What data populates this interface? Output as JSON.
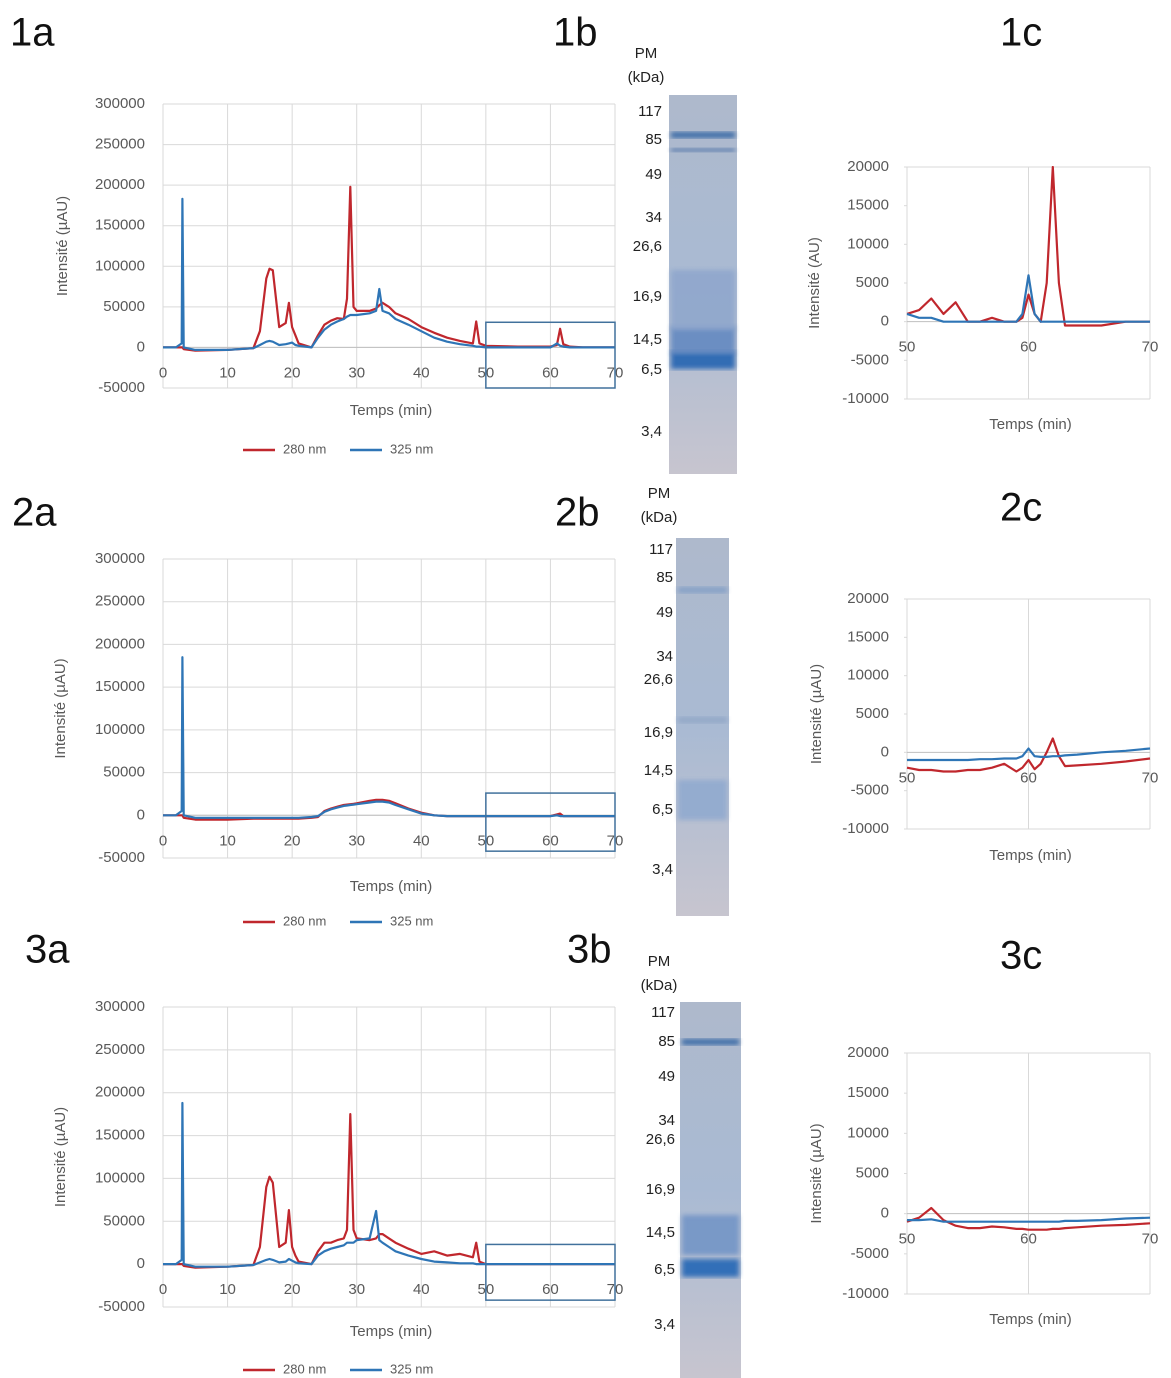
{
  "figure": {
    "panel_labels": [
      "1a",
      "1b",
      "1c",
      "2a",
      "2b",
      "2c",
      "3a",
      "3b",
      "3c"
    ],
    "gels": [
      {
        "header": [
          "PM",
          "(kDa)"
        ],
        "markers": [
          "117",
          "85",
          "49",
          "34",
          "26,6",
          "16,9",
          "14,5",
          "6,5",
          "3,4"
        ]
      },
      {
        "header": [
          "PM",
          "(kDa)"
        ],
        "markers": [
          "117",
          "85",
          "49",
          "34",
          "26,6",
          "16,9",
          "14,5",
          "6,5",
          "3,4"
        ]
      },
      {
        "header": [
          "PM",
          "(kDa)"
        ],
        "markers": [
          "117",
          "85",
          "49",
          "34",
          "26,6",
          "16,9",
          "14,5",
          "6,5",
          "3,4"
        ]
      }
    ]
  },
  "chart_data": [
    {
      "type": "line",
      "x_label": "Temps (min)",
      "y_label": "Intensité (µAU)",
      "grid": "both",
      "xlim": [
        0,
        70
      ],
      "xticks": [
        0,
        10,
        20,
        30,
        40,
        50,
        60,
        70
      ],
      "ylim": [
        -50000,
        300000
      ],
      "yticks": [
        -50000,
        0,
        50000,
        100000,
        150000,
        200000,
        250000,
        300000
      ],
      "highlight": {
        "x": [
          50,
          70
        ],
        "y": [
          -50000,
          31000
        ],
        "color": "#41719c"
      },
      "x": [
        0,
        2,
        2.9,
        3,
        3.2,
        5,
        10,
        14,
        15,
        16,
        16.5,
        17,
        18,
        19,
        19.5,
        20,
        20.5,
        21,
        23,
        24,
        25,
        26,
        27,
        28,
        28.5,
        29,
        29.5,
        30,
        32,
        33,
        33.5,
        34,
        35,
        36,
        38,
        40,
        42,
        44,
        46,
        48,
        48.5,
        49,
        50,
        55,
        60,
        61,
        61.5,
        62,
        63,
        65,
        70
      ],
      "series": [
        {
          "name": "280 nm",
          "color": "#c0272d",
          "values": [
            0,
            0,
            0,
            0,
            -2000,
            -4000,
            -3000,
            -1000,
            20000,
            85000,
            97000,
            95000,
            25000,
            30000,
            55000,
            25000,
            15000,
            5000,
            0,
            15000,
            28000,
            33000,
            36000,
            35000,
            60000,
            198000,
            50000,
            45000,
            45000,
            48000,
            52000,
            55000,
            50000,
            42000,
            35000,
            25000,
            18000,
            12000,
            8000,
            5000,
            32000,
            5000,
            2000,
            1000,
            1000,
            3000,
            23000,
            4000,
            1000,
            0,
            0
          ]
        },
        {
          "name": "325 nm",
          "color": "#2e75b6",
          "values": [
            0,
            0,
            5000,
            183000,
            0,
            -3000,
            -3000,
            -1000,
            3000,
            7000,
            8000,
            7000,
            3000,
            4000,
            5000,
            6000,
            3000,
            2000,
            0,
            12000,
            22000,
            28000,
            32000,
            35000,
            38000,
            40000,
            40000,
            40000,
            42000,
            45000,
            72000,
            45000,
            42000,
            35000,
            28000,
            20000,
            12000,
            7000,
            4000,
            2000,
            1000,
            1000,
            0,
            0,
            0,
            5000,
            2000,
            1000,
            0,
            0,
            0
          ]
        }
      ]
    },
    {
      "type": "line",
      "x_label": "Temps (min)",
      "y_label": "Intensité (AU)",
      "grid": "x",
      "xlim": [
        50,
        70
      ],
      "xticks": [
        50,
        60,
        70
      ],
      "ylim": [
        -10000,
        20000
      ],
      "yticks": [
        -10000,
        -5000,
        0,
        5000,
        10000,
        15000,
        20000
      ],
      "x": [
        50,
        51,
        52,
        53,
        54,
        55,
        56,
        57,
        58,
        59,
        59.5,
        60,
        60.5,
        61,
        61.5,
        62,
        62.5,
        63,
        64,
        66,
        68,
        70
      ],
      "series": [
        {
          "color": "#c0272d",
          "values": [
            1000,
            1500,
            3000,
            1000,
            2500,
            0,
            0,
            500,
            0,
            0,
            500,
            3500,
            1000,
            0,
            5000,
            20000,
            5000,
            -500,
            -500,
            -500,
            0,
            0
          ]
        },
        {
          "color": "#2e75b6",
          "values": [
            1000,
            500,
            500,
            0,
            0,
            0,
            0,
            0,
            0,
            0,
            1000,
            6000,
            1000,
            0,
            0,
            0,
            0,
            0,
            0,
            0,
            0,
            0
          ]
        }
      ]
    },
    {
      "type": "line",
      "x_label": "Temps (min)",
      "y_label": "Intensité (µAU)",
      "grid": "both",
      "xlim": [
        0,
        70
      ],
      "xticks": [
        0,
        10,
        20,
        30,
        40,
        50,
        60,
        70
      ],
      "ylim": [
        -50000,
        300000
      ],
      "yticks": [
        -50000,
        0,
        50000,
        100000,
        150000,
        200000,
        250000,
        300000
      ],
      "highlight": {
        "x": [
          50,
          70
        ],
        "y": [
          -42000,
          26000
        ],
        "color": "#41719c"
      },
      "x": [
        0,
        2,
        2.9,
        3,
        3.2,
        5,
        10,
        14,
        15,
        16,
        16.5,
        17,
        18,
        19,
        19.5,
        20,
        20.5,
        21,
        23,
        24,
        25,
        26,
        27,
        28,
        28.5,
        29,
        29.5,
        30,
        32,
        33,
        33.5,
        34,
        35,
        36,
        38,
        40,
        42,
        44,
        46,
        48,
        48.5,
        49,
        50,
        55,
        60,
        61,
        61.5,
        62,
        63,
        65,
        70
      ],
      "series": [
        {
          "name": "280 nm",
          "color": "#c0272d",
          "values": [
            0,
            0,
            0,
            0,
            -3000,
            -5000,
            -5000,
            -4000,
            -4000,
            -4000,
            -4000,
            -4000,
            -4000,
            -4000,
            -4000,
            -4000,
            -4000,
            -4000,
            -3000,
            -2000,
            5000,
            8000,
            10000,
            12000,
            12500,
            13000,
            13500,
            14000,
            17000,
            18000,
            18000,
            18000,
            17000,
            14000,
            8000,
            3000,
            0,
            -1000,
            -1000,
            -1000,
            -1000,
            -1000,
            -1000,
            -1000,
            -1000,
            1000,
            2000,
            -1000,
            -1000,
            -1000,
            -1000
          ]
        },
        {
          "name": "325 nm",
          "color": "#2e75b6",
          "values": [
            0,
            0,
            5000,
            185000,
            0,
            -3000,
            -3000,
            -3000,
            -3000,
            -3000,
            -3000,
            -3000,
            -3000,
            -3000,
            -3000,
            -3000,
            -3000,
            -3000,
            -2000,
            -1000,
            4000,
            7000,
            9000,
            11000,
            11500,
            12000,
            12500,
            13000,
            15000,
            16000,
            16000,
            16000,
            15000,
            12000,
            7000,
            2000,
            0,
            -1000,
            -1000,
            -1000,
            -1000,
            -1000,
            -1000,
            -1000,
            -1000,
            0,
            -1000,
            -1000,
            -1000,
            -1000,
            -1000
          ]
        }
      ]
    },
    {
      "type": "line",
      "x_label": "Temps (min)",
      "y_label": "Intensité (µAU)",
      "grid": "x",
      "xlim": [
        50,
        70
      ],
      "xticks": [
        50,
        60,
        70
      ],
      "ylim": [
        -10000,
        20000
      ],
      "yticks": [
        -10000,
        -5000,
        0,
        5000,
        10000,
        15000,
        20000
      ],
      "x": [
        50,
        51,
        52,
        53,
        54,
        55,
        56,
        57,
        58,
        59,
        59.5,
        60,
        60.5,
        61,
        61.5,
        62,
        62.5,
        63,
        64,
        66,
        68,
        70
      ],
      "series": [
        {
          "color": "#c0272d",
          "values": [
            -2000,
            -2300,
            -2300,
            -2500,
            -2500,
            -2300,
            -2300,
            -2000,
            -1500,
            -2500,
            -2000,
            -1000,
            -2200,
            -1500,
            0,
            1800,
            -500,
            -1800,
            -1700,
            -1500,
            -1200,
            -800
          ]
        },
        {
          "color": "#2e75b6",
          "values": [
            -1000,
            -1000,
            -1000,
            -1000,
            -1000,
            -1000,
            -900,
            -900,
            -800,
            -800,
            -500,
            500,
            -500,
            -600,
            -600,
            -500,
            -500,
            -400,
            -300,
            0,
            200,
            500
          ]
        }
      ]
    },
    {
      "type": "line",
      "x_label": "Temps (min)",
      "y_label": "Intensité (µAU)",
      "grid": "both",
      "xlim": [
        0,
        70
      ],
      "xticks": [
        0,
        10,
        20,
        30,
        40,
        50,
        60,
        70
      ],
      "ylim": [
        -50000,
        300000
      ],
      "yticks": [
        -50000,
        0,
        50000,
        100000,
        150000,
        200000,
        250000,
        300000
      ],
      "highlight": {
        "x": [
          50,
          70
        ],
        "y": [
          -42000,
          23000
        ],
        "color": "#41719c"
      },
      "x": [
        0,
        2,
        2.9,
        3,
        3.2,
        5,
        10,
        14,
        15,
        16,
        16.5,
        17,
        18,
        19,
        19.5,
        20,
        20.5,
        21,
        23,
        24,
        25,
        26,
        27,
        28,
        28.5,
        29,
        29.5,
        30,
        32,
        33,
        33.5,
        34,
        35,
        36,
        38,
        40,
        42,
        44,
        46,
        48,
        48.5,
        49,
        50,
        55,
        60,
        61,
        61.5,
        62,
        63,
        65,
        70
      ],
      "series": [
        {
          "name": "280 nm",
          "color": "#c0272d",
          "values": [
            0,
            0,
            0,
            0,
            -2000,
            -4000,
            -3000,
            -1000,
            20000,
            90000,
            102000,
            95000,
            20000,
            25000,
            63000,
            20000,
            10000,
            3000,
            0,
            15000,
            25000,
            25000,
            28000,
            30000,
            40000,
            175000,
            40000,
            30000,
            28000,
            30000,
            35000,
            35000,
            30000,
            25000,
            18000,
            12000,
            15000,
            10000,
            12000,
            8000,
            25000,
            3000,
            0,
            0,
            0,
            0,
            0,
            0,
            0,
            0,
            0
          ]
        },
        {
          "name": "325 nm",
          "color": "#2e75b6",
          "values": [
            0,
            0,
            5000,
            188000,
            0,
            -3000,
            -3000,
            -1000,
            2000,
            5000,
            6000,
            5000,
            2000,
            3000,
            6000,
            4000,
            2000,
            1000,
            0,
            10000,
            15000,
            18000,
            20000,
            22000,
            25000,
            25000,
            25000,
            28000,
            30000,
            62000,
            28000,
            25000,
            20000,
            15000,
            10000,
            6000,
            3000,
            2000,
            1000,
            1000,
            0,
            0,
            0,
            0,
            0,
            0,
            0,
            0,
            0,
            0,
            0
          ]
        }
      ]
    },
    {
      "type": "line",
      "x_label": "Temps (min)",
      "y_label": "Intensité (µAU)",
      "grid": "x",
      "xlim": [
        50,
        70
      ],
      "xticks": [
        50,
        60,
        70
      ],
      "ylim": [
        -10000,
        20000
      ],
      "yticks": [
        -10000,
        -5000,
        0,
        5000,
        10000,
        15000,
        20000
      ],
      "x": [
        50,
        51,
        52,
        53,
        54,
        55,
        56,
        57,
        58,
        59,
        59.5,
        60,
        60.5,
        61,
        61.5,
        62,
        62.5,
        63,
        64,
        66,
        68,
        70
      ],
      "series": [
        {
          "color": "#c0272d",
          "values": [
            -1000,
            -500,
            700,
            -800,
            -1500,
            -1800,
            -1800,
            -1600,
            -1700,
            -1900,
            -1900,
            -2000,
            -2000,
            -2000,
            -2000,
            -1900,
            -1900,
            -1800,
            -1700,
            -1500,
            -1400,
            -1200
          ]
        },
        {
          "color": "#2e75b6",
          "values": [
            -800,
            -800,
            -700,
            -1000,
            -1000,
            -1000,
            -1000,
            -1000,
            -1000,
            -1000,
            -1000,
            -1000,
            -1000,
            -1000,
            -1000,
            -1000,
            -1000,
            -900,
            -900,
            -800,
            -600,
            -500
          ]
        }
      ]
    }
  ]
}
